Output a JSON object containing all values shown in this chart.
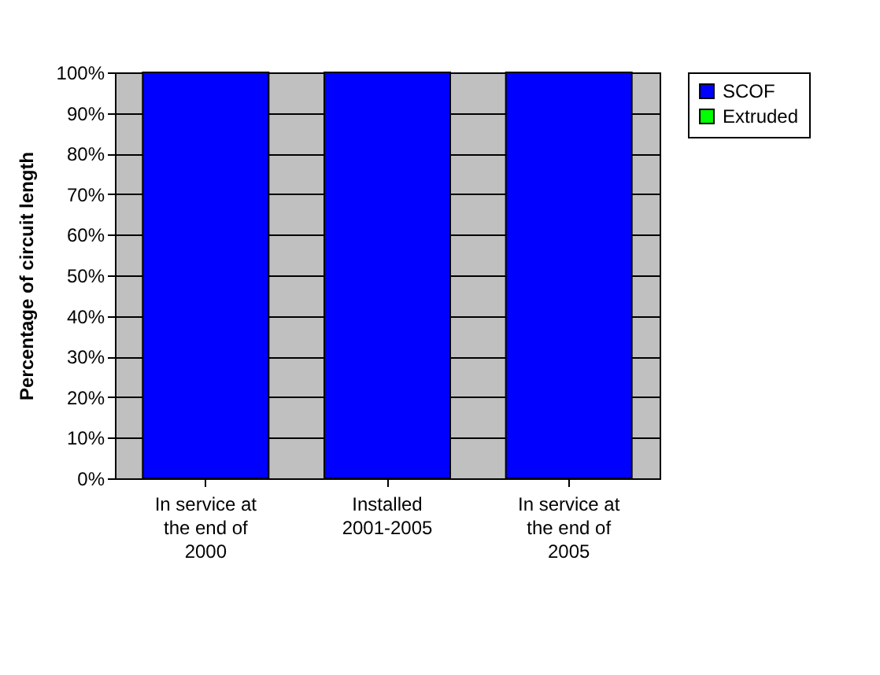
{
  "chart_data": {
    "type": "bar",
    "stacked": true,
    "categories": [
      "In service at the end of 2000",
      "Installed 2001-2005",
      "In service at the end of 2005"
    ],
    "series": [
      {
        "name": "SCOF",
        "color": "#0000ff",
        "values": [
          100,
          100,
          100
        ]
      },
      {
        "name": "Extruded",
        "color": "#00ff00",
        "values": [
          0,
          0,
          0
        ]
      }
    ],
    "ylabel": "Percentage of circuit length",
    "ylim": [
      0,
      100
    ],
    "yticks": [
      {
        "value": 0,
        "label": "0%"
      },
      {
        "value": 10,
        "label": "10%"
      },
      {
        "value": 20,
        "label": "20%"
      },
      {
        "value": 30,
        "label": "30%"
      },
      {
        "value": 40,
        "label": "40%"
      },
      {
        "value": 50,
        "label": "50%"
      },
      {
        "value": 60,
        "label": "60%"
      },
      {
        "value": 70,
        "label": "70%"
      },
      {
        "value": 80,
        "label": "80%"
      },
      {
        "value": 90,
        "label": "90%"
      },
      {
        "value": 100,
        "label": "100%"
      }
    ],
    "grid": "y",
    "legend": "right"
  }
}
